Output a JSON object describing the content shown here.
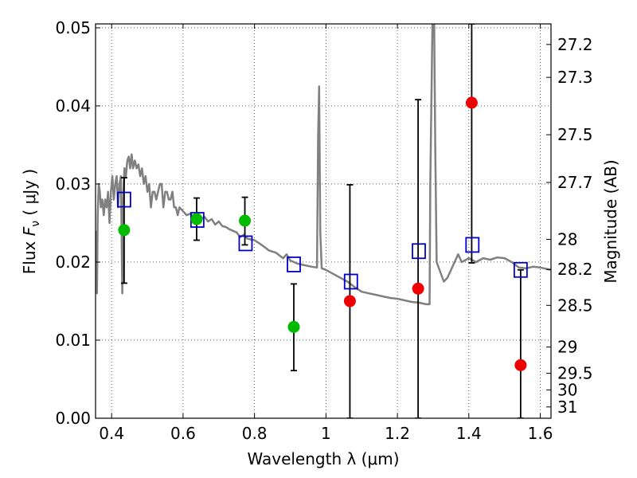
{
  "chart_data": {
    "type": "scatter",
    "xlabel": "Wavelength  λ (μm)",
    "ylabel_parts": {
      "prefix": "Flux  ",
      "symbol": "F",
      "subscript": "ν",
      "suffix": "  ( μJy )"
    },
    "y2label": "Magnitude (AB)",
    "xlim": [
      0.355,
      1.63
    ],
    "ylim": [
      0.0,
      0.0505
    ],
    "grid": true,
    "x_ticks": [
      {
        "value": 0.4,
        "label": "0.4"
      },
      {
        "value": 0.6,
        "label": "0.6"
      },
      {
        "value": 0.8,
        "label": "0.8"
      },
      {
        "value": 1.0,
        "label": "1"
      },
      {
        "value": 1.2,
        "label": "1.2"
      },
      {
        "value": 1.4,
        "label": "1.4"
      },
      {
        "value": 1.6,
        "label": "1.6"
      }
    ],
    "y_ticks": [
      {
        "value": 0.0,
        "label": "0.00"
      },
      {
        "value": 0.01,
        "label": "0.01"
      },
      {
        "value": 0.02,
        "label": "0.02"
      },
      {
        "value": 0.03,
        "label": "0.03"
      },
      {
        "value": 0.04,
        "label": "0.04"
      },
      {
        "value": 0.05,
        "label": "0.05"
      }
    ],
    "y2_ticks": [
      {
        "value": 27.2,
        "label": "27.2"
      },
      {
        "value": 27.3,
        "label": "27.3"
      },
      {
        "value": 27.5,
        "label": "27.5"
      },
      {
        "value": 27.7,
        "label": "27.7"
      },
      {
        "value": 28.0,
        "label": "28"
      },
      {
        "value": 28.2,
        "label": "28.2"
      },
      {
        "value": 28.5,
        "label": "28.5"
      },
      {
        "value": 29.0,
        "label": "29"
      },
      {
        "value": 29.5,
        "label": "29.5"
      },
      {
        "value": 30.0,
        "label": "30"
      },
      {
        "value": 31.0,
        "label": "31"
      }
    ],
    "model_sed": {
      "color": "#808080",
      "points": [
        [
          0.357,
          0.024
        ],
        [
          0.359,
          0.016
        ],
        [
          0.361,
          0.026
        ],
        [
          0.364,
          0.03
        ],
        [
          0.367,
          0.029
        ],
        [
          0.37,
          0.027
        ],
        [
          0.374,
          0.028
        ],
        [
          0.378,
          0.026
        ],
        [
          0.382,
          0.028
        ],
        [
          0.386,
          0.027
        ],
        [
          0.39,
          0.029
        ],
        [
          0.394,
          0.025
        ],
        [
          0.398,
          0.029
        ],
        [
          0.402,
          0.031
        ],
        [
          0.406,
          0.028
        ],
        [
          0.41,
          0.03
        ],
        [
          0.414,
          0.031
        ],
        [
          0.418,
          0.027
        ],
        [
          0.422,
          0.03
        ],
        [
          0.426,
          0.031
        ],
        [
          0.43,
          0.016
        ],
        [
          0.433,
          0.029
        ],
        [
          0.436,
          0.032
        ],
        [
          0.44,
          0.031
        ],
        [
          0.444,
          0.033
        ],
        [
          0.448,
          0.0335
        ],
        [
          0.452,
          0.032
        ],
        [
          0.456,
          0.0338
        ],
        [
          0.46,
          0.032
        ],
        [
          0.465,
          0.033
        ],
        [
          0.47,
          0.032
        ],
        [
          0.475,
          0.0325
        ],
        [
          0.48,
          0.031
        ],
        [
          0.485,
          0.032
        ],
        [
          0.49,
          0.03
        ],
        [
          0.495,
          0.031
        ],
        [
          0.5,
          0.029
        ],
        [
          0.505,
          0.03
        ],
        [
          0.51,
          0.027
        ],
        [
          0.515,
          0.029
        ],
        [
          0.52,
          0.029
        ],
        [
          0.525,
          0.028
        ],
        [
          0.53,
          0.029
        ],
        [
          0.535,
          0.03
        ],
        [
          0.54,
          0.03
        ],
        [
          0.545,
          0.027
        ],
        [
          0.55,
          0.029
        ],
        [
          0.555,
          0.029
        ],
        [
          0.56,
          0.028
        ],
        [
          0.565,
          0.028
        ],
        [
          0.57,
          0.029
        ],
        [
          0.575,
          0.027
        ],
        [
          0.58,
          0.027
        ],
        [
          0.585,
          0.026
        ],
        [
          0.59,
          0.027
        ],
        [
          0.6,
          0.0265
        ],
        [
          0.61,
          0.026
        ],
        [
          0.62,
          0.0262
        ],
        [
          0.63,
          0.0258
        ],
        [
          0.64,
          0.026
        ],
        [
          0.65,
          0.0255
        ],
        [
          0.66,
          0.0258
        ],
        [
          0.67,
          0.0252
        ],
        [
          0.68,
          0.0255
        ],
        [
          0.69,
          0.0248
        ],
        [
          0.7,
          0.0252
        ],
        [
          0.71,
          0.0246
        ],
        [
          0.72,
          0.0245
        ],
        [
          0.73,
          0.0242
        ],
        [
          0.74,
          0.024
        ],
        [
          0.75,
          0.0238
        ],
        [
          0.76,
          0.0232
        ],
        [
          0.77,
          0.0235
        ],
        [
          0.78,
          0.023
        ],
        [
          0.8,
          0.0228
        ],
        [
          0.82,
          0.0222
        ],
        [
          0.84,
          0.0215
        ],
        [
          0.86,
          0.0212
        ],
        [
          0.88,
          0.0205
        ],
        [
          0.89,
          0.021
        ],
        [
          0.9,
          0.0202
        ],
        [
          0.92,
          0.0198
        ],
        [
          0.94,
          0.0196
        ],
        [
          0.96,
          0.0194
        ],
        [
          0.975,
          0.0193
        ],
        [
          0.978,
          0.036
        ],
        [
          0.981,
          0.0425
        ],
        [
          0.984,
          0.024
        ],
        [
          0.988,
          0.0192
        ],
        [
          1.0,
          0.019
        ],
        [
          1.02,
          0.0185
        ],
        [
          1.04,
          0.018
        ],
        [
          1.06,
          0.0175
        ],
        [
          1.08,
          0.0168
        ],
        [
          1.1,
          0.0162
        ],
        [
          1.12,
          0.016
        ],
        [
          1.14,
          0.0158
        ],
        [
          1.16,
          0.0156
        ],
        [
          1.18,
          0.0154
        ],
        [
          1.2,
          0.0153
        ],
        [
          1.22,
          0.0151
        ],
        [
          1.24,
          0.0149
        ],
        [
          1.26,
          0.0148
        ],
        [
          1.28,
          0.0146
        ],
        [
          1.29,
          0.0146
        ],
        [
          1.292,
          0.03
        ],
        [
          1.298,
          0.0505
        ],
        [
          1.303,
          0.0505
        ],
        [
          1.306,
          0.035
        ],
        [
          1.31,
          0.02
        ],
        [
          1.33,
          0.0175
        ],
        [
          1.34,
          0.018
        ],
        [
          1.36,
          0.02
        ],
        [
          1.37,
          0.021
        ],
        [
          1.38,
          0.02
        ],
        [
          1.4,
          0.0205
        ],
        [
          1.42,
          0.02
        ],
        [
          1.44,
          0.0205
        ],
        [
          1.46,
          0.0203
        ],
        [
          1.48,
          0.0206
        ],
        [
          1.5,
          0.0205
        ],
        [
          1.52,
          0.02
        ],
        [
          1.54,
          0.0193
        ],
        [
          1.56,
          0.0192
        ],
        [
          1.58,
          0.0194
        ],
        [
          1.6,
          0.0193
        ],
        [
          1.63,
          0.019
        ]
      ]
    },
    "model_bands": {
      "color": "#0000cc",
      "points": [
        [
          0.435,
          0.028
        ],
        [
          0.64,
          0.0254
        ],
        [
          0.775,
          0.0224
        ],
        [
          0.91,
          0.0197
        ],
        [
          1.07,
          0.0175
        ],
        [
          1.26,
          0.0214
        ],
        [
          1.41,
          0.0222
        ],
        [
          1.545,
          0.019
        ]
      ]
    },
    "detections": {
      "color": "#00bb00",
      "points": [
        {
          "x": 0.435,
          "y": 0.0241,
          "ylo": 0.0173,
          "yhi": 0.0308
        },
        {
          "x": 0.638,
          "y": 0.0255,
          "ylo": 0.0228,
          "yhi": 0.0282
        },
        {
          "x": 0.773,
          "y": 0.0253,
          "ylo": 0.0222,
          "yhi": 0.0283
        },
        {
          "x": 0.91,
          "y": 0.0117,
          "ylo": 0.0061,
          "yhi": 0.0172
        }
      ]
    },
    "non_detections": {
      "color": "#ee0000",
      "points": [
        {
          "x": 1.067,
          "y": 0.015,
          "ylo": 0.0,
          "yhi": 0.0299
        },
        {
          "x": 1.258,
          "y": 0.0166,
          "ylo": 0.0,
          "yhi": 0.0408
        },
        {
          "x": 1.408,
          "y": 0.0404,
          "ylo": 0.0199,
          "yhi": 0.0505
        },
        {
          "x": 1.545,
          "y": 0.0068,
          "ylo": 0.0,
          "yhi": 0.019
        }
      ]
    }
  }
}
